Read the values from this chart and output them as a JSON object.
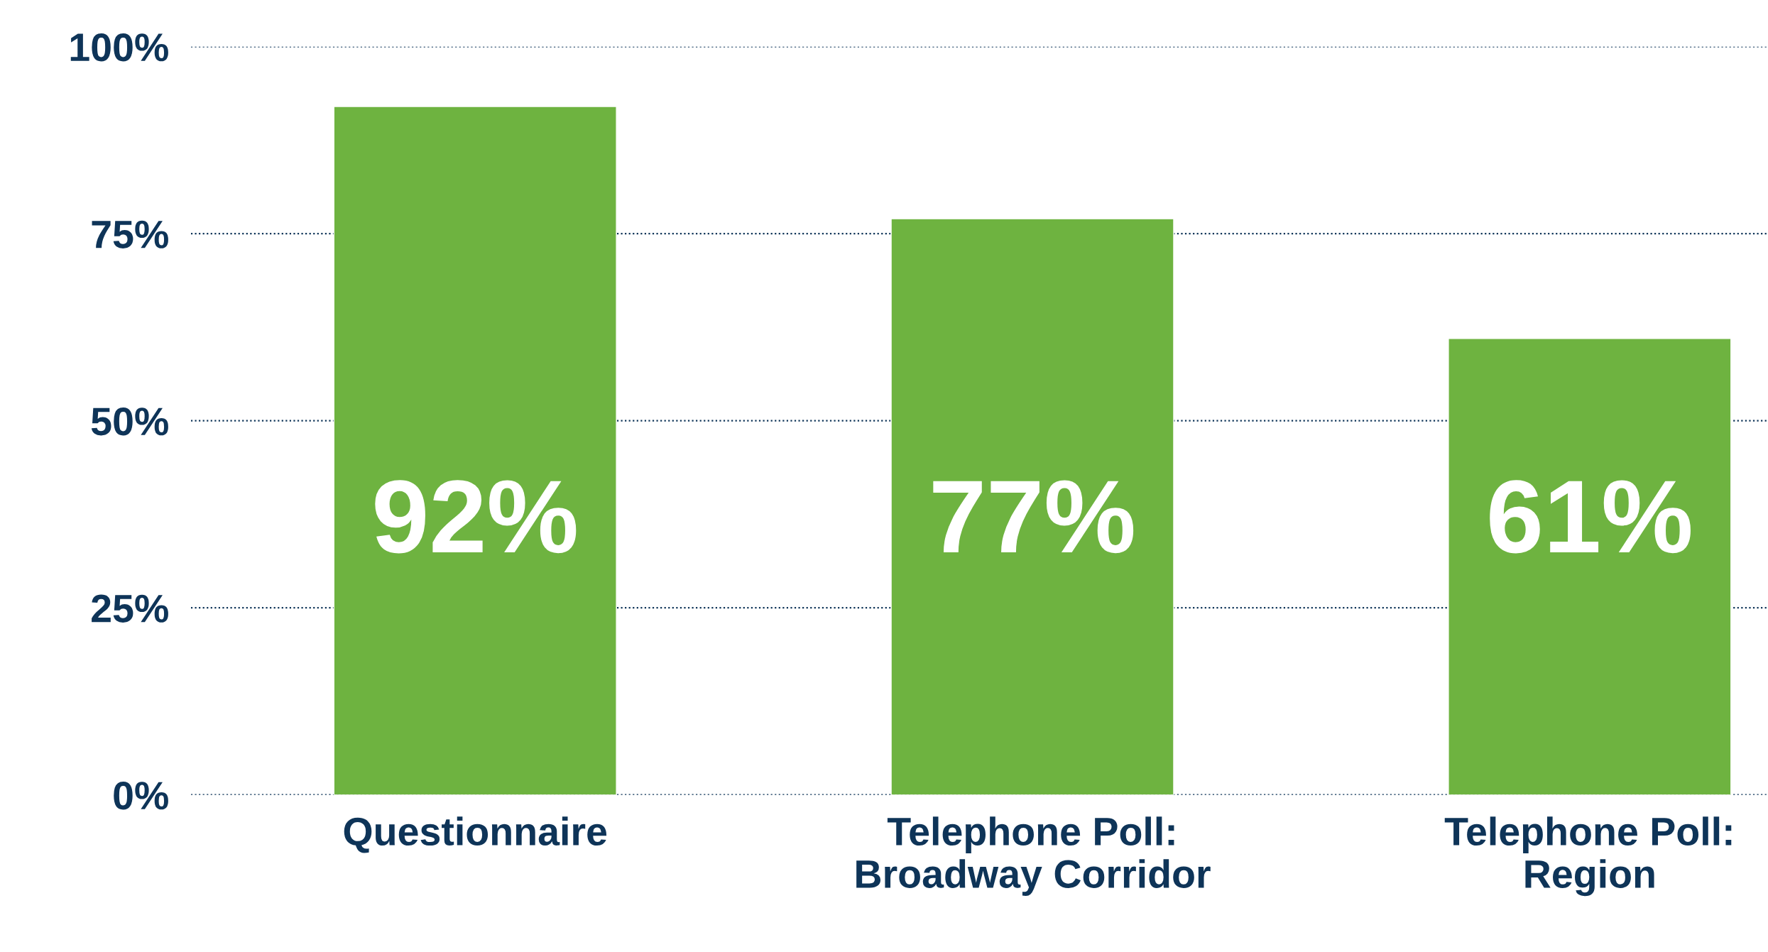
{
  "chart_data": {
    "type": "bar",
    "categories": [
      "Questionnaire",
      "Telephone Poll:\nBroadway Corridor",
      "Telephone Poll:\nRegion"
    ],
    "values": [
      92,
      77,
      61
    ],
    "value_labels": [
      "92%",
      "77%",
      "61%"
    ],
    "color": "#6eb340",
    "ylim": [
      0,
      100
    ],
    "yticks": [
      {
        "value": 0,
        "label": "0%"
      },
      {
        "value": 25,
        "label": "25%"
      },
      {
        "value": 50,
        "label": "50%"
      },
      {
        "value": 75,
        "label": "75%"
      },
      {
        "value": 100,
        "label": "100%"
      }
    ],
    "grid": "y"
  }
}
